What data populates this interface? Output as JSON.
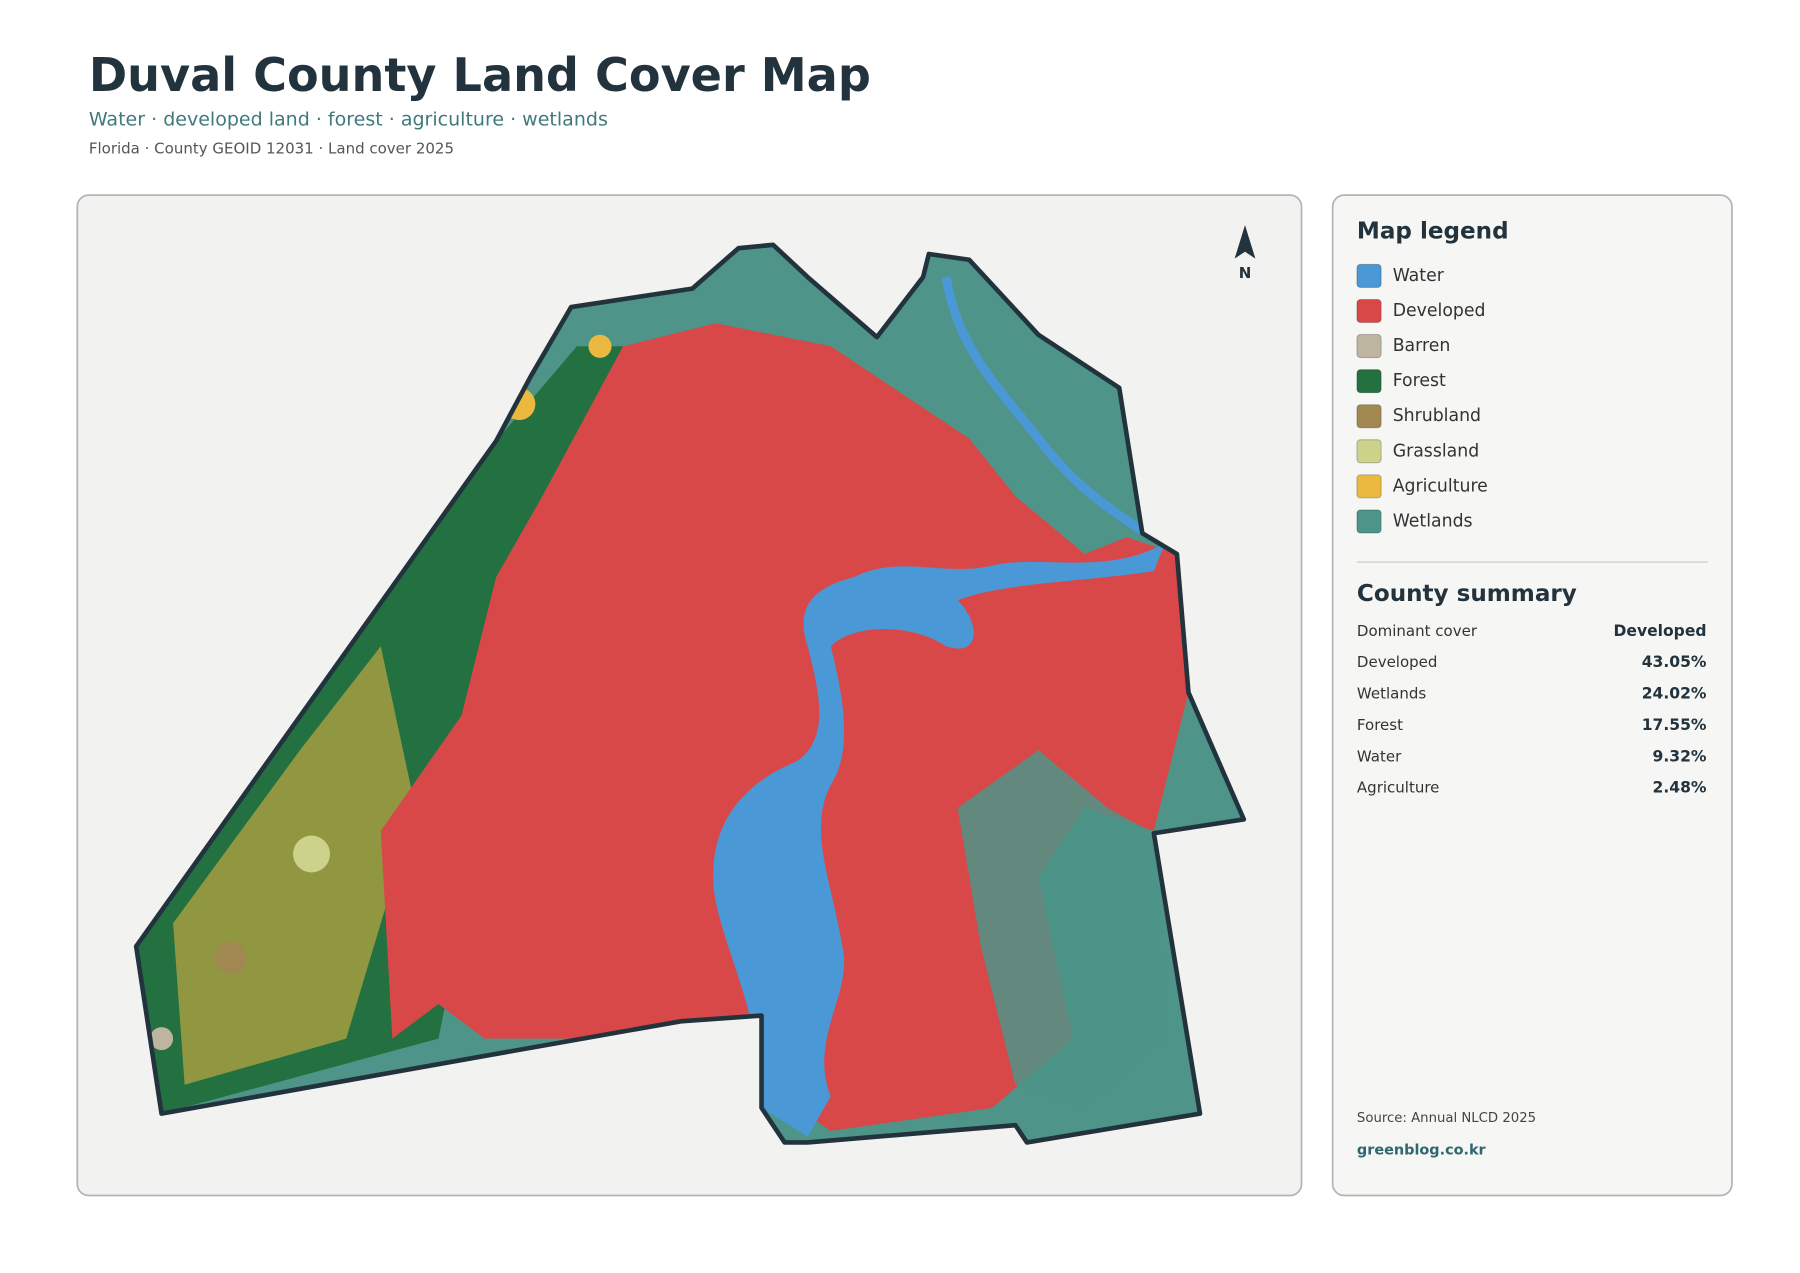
{
  "header": {
    "title": "Duval County Land Cover Map",
    "subtitle": "Water · developed land · forest · agriculture · wetlands",
    "meta": "Florida · County GEOID 12031 · Land cover 2025"
  },
  "map": {
    "north_label": "N"
  },
  "legend": {
    "title": "Map legend",
    "items": [
      {
        "label": "Water",
        "color": "#4a98d6"
      },
      {
        "label": "Developed",
        "color": "#d94848"
      },
      {
        "label": "Barren",
        "color": "#bdb5a0"
      },
      {
        "label": "Forest",
        "color": "#237040"
      },
      {
        "label": "Shrubland",
        "color": "#a08850"
      },
      {
        "label": "Grassland",
        "color": "#cdd28a"
      },
      {
        "label": "Agriculture",
        "color": "#ebb840"
      },
      {
        "label": "Wetlands",
        "color": "#4e9488"
      }
    ]
  },
  "summary": {
    "title": "County summary",
    "rows": [
      {
        "label": "Dominant cover",
        "value": "Developed"
      },
      {
        "label": "Developed",
        "value": "43.05%"
      },
      {
        "label": "Wetlands",
        "value": "24.02%"
      },
      {
        "label": "Forest",
        "value": "17.55%"
      },
      {
        "label": "Water",
        "value": "9.32%"
      },
      {
        "label": "Agriculture",
        "value": "2.48%"
      }
    ]
  },
  "footer": {
    "source": "Source: Annual NLCD 2025",
    "site": "greenblog.co.kr"
  }
}
